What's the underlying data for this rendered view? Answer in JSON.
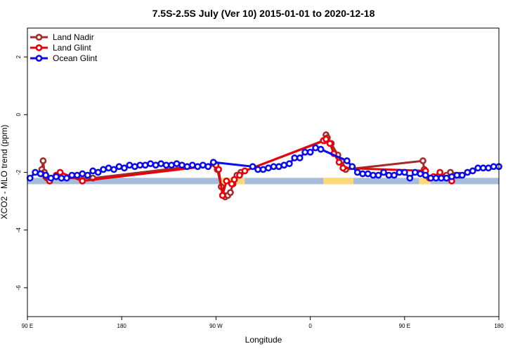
{
  "chart_data": {
    "type": "line",
    "title": "7.5S-2.5S July (Ver 10)   2015-01-01 to 2020-12-18",
    "xlabel": "Longitude",
    "ylabel": "XCO2 - MLO trend (ppm)",
    "xlim": [
      90,
      450
    ],
    "ylim": [
      -7,
      3
    ],
    "x_ticks": [
      {
        "value": 90,
        "label": "90 E"
      },
      {
        "value": 162,
        "label": "180"
      },
      {
        "value": 234,
        "label": "90 W"
      },
      {
        "value": 306,
        "label": "0"
      },
      {
        "value": 378,
        "label": "90 E"
      },
      {
        "value": 450,
        "label": "180"
      }
    ],
    "y_ticks": [
      {
        "value": 2,
        "label": "2"
      },
      {
        "value": 0,
        "label": "0"
      },
      {
        "value": -2,
        "label": "-2"
      },
      {
        "value": -4,
        "label": "-4"
      },
      {
        "value": -6,
        "label": "-6"
      }
    ],
    "land_mask": {
      "y": -2.3,
      "ocean_color": "#a5bcdb",
      "land_color": "#fcd979",
      "land_segments": [
        [
          237,
          256
        ],
        [
          316,
          339
        ],
        [
          389,
          398
        ]
      ]
    },
    "series": [
      {
        "name": "Land Nadir",
        "color": "#a52a2a",
        "x": [
          101,
          102,
          103,
          104,
          105,
          140,
          233,
          235,
          238,
          240,
          241,
          243,
          245,
          247,
          250,
          253,
          317,
          318,
          319,
          322,
          327,
          330,
          333,
          392,
          393,
          394,
          398,
          410,
          413,
          417,
          420
        ],
        "values": [
          -1.9,
          -1.6,
          -2.0,
          -2.1,
          -2.2,
          -2.2,
          -1.7,
          -1.9,
          -2.5,
          -2.8,
          -2.85,
          -2.8,
          -2.7,
          -2.4,
          -2.1,
          -2.0,
          -0.9,
          -0.7,
          -0.8,
          -1.0,
          -1.4,
          -1.6,
          -1.9,
          -1.6,
          -1.9,
          -2.1,
          -2.2,
          -2.1,
          -2.0,
          -2.1,
          -2.1
        ]
      },
      {
        "name": "Land Glint",
        "color": "#e8000b",
        "x": [
          101,
          104,
          107,
          112,
          115,
          132,
          234,
          236,
          239,
          242,
          246,
          248,
          252,
          256,
          316,
          318,
          321,
          324,
          328,
          331,
          394,
          397,
          400,
          405,
          410,
          414
        ],
        "values": [
          -2.05,
          -2.15,
          -2.3,
          -2.1,
          -2.0,
          -2.3,
          -1.75,
          -1.9,
          -2.8,
          -2.3,
          -2.4,
          -2.25,
          -2.1,
          -1.95,
          -0.9,
          -0.85,
          -1.0,
          -1.35,
          -1.65,
          -1.85,
          -1.95,
          -2.2,
          -2.15,
          -2.0,
          -2.2,
          -2.3
        ]
      },
      {
        "name": "Ocean Glint",
        "color": "#0a0aee",
        "x": [
          92,
          96,
          100,
          104,
          108,
          112,
          116,
          120,
          124,
          128,
          132,
          136,
          140,
          144,
          148,
          152,
          156,
          160,
          164,
          168,
          172,
          176,
          180,
          184,
          188,
          192,
          196,
          200,
          204,
          208,
          212,
          216,
          220,
          224,
          228,
          232,
          262,
          266,
          270,
          274,
          278,
          282,
          286,
          290,
          294,
          298,
          302,
          306,
          310,
          314,
          334,
          338,
          342,
          346,
          350,
          354,
          358,
          362,
          366,
          370,
          374,
          378,
          382,
          386,
          390,
          394,
          398,
          402,
          406,
          410,
          414,
          418,
          422,
          426,
          430,
          434,
          438,
          442,
          446,
          450
        ],
        "values": [
          -2.2,
          -2.0,
          -2.05,
          -2.1,
          -2.2,
          -2.15,
          -2.2,
          -2.2,
          -2.1,
          -2.1,
          -2.05,
          -2.1,
          -1.95,
          -2.0,
          -1.9,
          -1.85,
          -1.9,
          -1.8,
          -1.85,
          -1.75,
          -1.8,
          -1.75,
          -1.75,
          -1.7,
          -1.75,
          -1.7,
          -1.75,
          -1.75,
          -1.7,
          -1.75,
          -1.8,
          -1.75,
          -1.8,
          -1.75,
          -1.8,
          -1.65,
          -1.8,
          -1.9,
          -1.9,
          -1.85,
          -1.8,
          -1.8,
          -1.75,
          -1.7,
          -1.5,
          -1.5,
          -1.3,
          -1.3,
          -1.15,
          -1.2,
          -1.6,
          -1.8,
          -2.0,
          -2.05,
          -2.05,
          -2.1,
          -2.1,
          -2.0,
          -2.1,
          -2.1,
          -2.0,
          -2.0,
          -2.2,
          -2.0,
          -2.05,
          -2.1,
          -2.2,
          -2.2,
          -2.2,
          -2.2,
          -2.15,
          -2.1,
          -2.1,
          -2.0,
          -1.95,
          -1.85,
          -1.85,
          -1.85,
          -1.8,
          -1.8
        ]
      }
    ],
    "legend": {
      "position": "top-left"
    }
  }
}
